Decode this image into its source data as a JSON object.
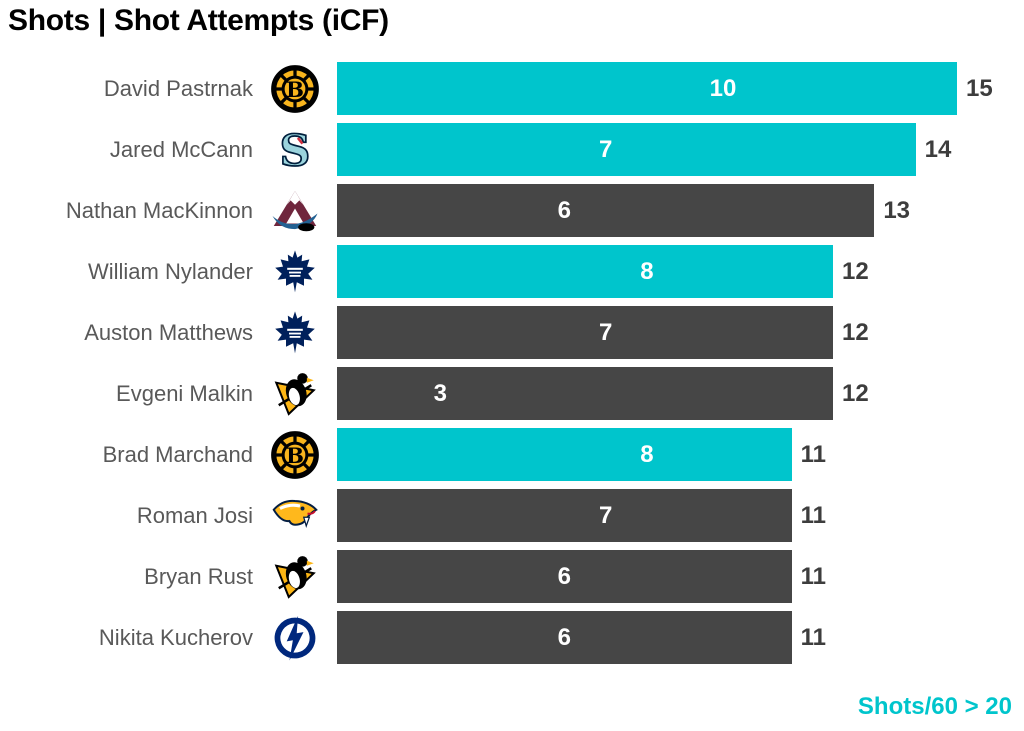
{
  "title": "Shots | Shot Attempts (iCF)",
  "footer": {
    "label": "Shots/60 > 20"
  },
  "colors": {
    "highlight_bar": "#00c5cc",
    "default_bar": "#464646",
    "inner_label": "#ffffff",
    "value_label": "#3d3d3d",
    "player_name": "#595959",
    "footer_text": "#00c5cc",
    "title_text": "#000000"
  },
  "chart_data": {
    "type": "bar",
    "orientation": "horizontal",
    "title": "Shots | Shot Attempts (iCF)",
    "xlim": [
      0,
      15
    ],
    "grid": false,
    "legend_note": "Shots/60 > 20 (teal bars indicate players with Shots/60 greater than 20)",
    "categories": [
      "David Pastrnak",
      "Jared McCann",
      "Nathan MacKinnon",
      "William Nylander",
      "Auston Matthews",
      "Evgeni Malkin",
      "Brad Marchand",
      "Roman Josi",
      "Bryan Rust",
      "Nikita Kucherov"
    ],
    "series": [
      {
        "name": "Shots",
        "values": [
          10,
          7,
          6,
          8,
          7,
          3,
          8,
          7,
          6,
          6
        ]
      },
      {
        "name": "Shot Attempts (iCF)",
        "values": [
          15,
          14,
          13,
          12,
          12,
          12,
          11,
          11,
          11,
          11
        ]
      }
    ],
    "rows": [
      {
        "player": "David Pastrnak",
        "team": "Boston Bruins",
        "team_icon": "bruins-logo-icon",
        "shots": 10,
        "attempts": 15,
        "highlight": true
      },
      {
        "player": "Jared McCann",
        "team": "Seattle Kraken",
        "team_icon": "kraken-logo-icon",
        "shots": 7,
        "attempts": 14,
        "highlight": true
      },
      {
        "player": "Nathan MacKinnon",
        "team": "Colorado Avalanche",
        "team_icon": "avalanche-logo-icon",
        "shots": 6,
        "attempts": 13,
        "highlight": false
      },
      {
        "player": "William Nylander",
        "team": "Toronto Maple Leafs",
        "team_icon": "mapleleafs-logo-icon",
        "shots": 8,
        "attempts": 12,
        "highlight": true
      },
      {
        "player": "Auston Matthews",
        "team": "Toronto Maple Leafs",
        "team_icon": "mapleleafs-logo-icon",
        "shots": 7,
        "attempts": 12,
        "highlight": false
      },
      {
        "player": "Evgeni Malkin",
        "team": "Pittsburgh Penguins",
        "team_icon": "penguins-logo-icon",
        "shots": 3,
        "attempts": 12,
        "highlight": false
      },
      {
        "player": "Brad Marchand",
        "team": "Boston Bruins",
        "team_icon": "bruins-logo-icon",
        "shots": 8,
        "attempts": 11,
        "highlight": true
      },
      {
        "player": "Roman Josi",
        "team": "Nashville Predators",
        "team_icon": "predators-logo-icon",
        "shots": 7,
        "attempts": 11,
        "highlight": false
      },
      {
        "player": "Bryan Rust",
        "team": "Pittsburgh Penguins",
        "team_icon": "penguins-logo-icon",
        "shots": 6,
        "attempts": 11,
        "highlight": false
      },
      {
        "player": "Nikita Kucherov",
        "team": "Tampa Bay Lightning",
        "team_icon": "lightning-logo-icon",
        "shots": 6,
        "attempts": 11,
        "highlight": false
      }
    ]
  }
}
